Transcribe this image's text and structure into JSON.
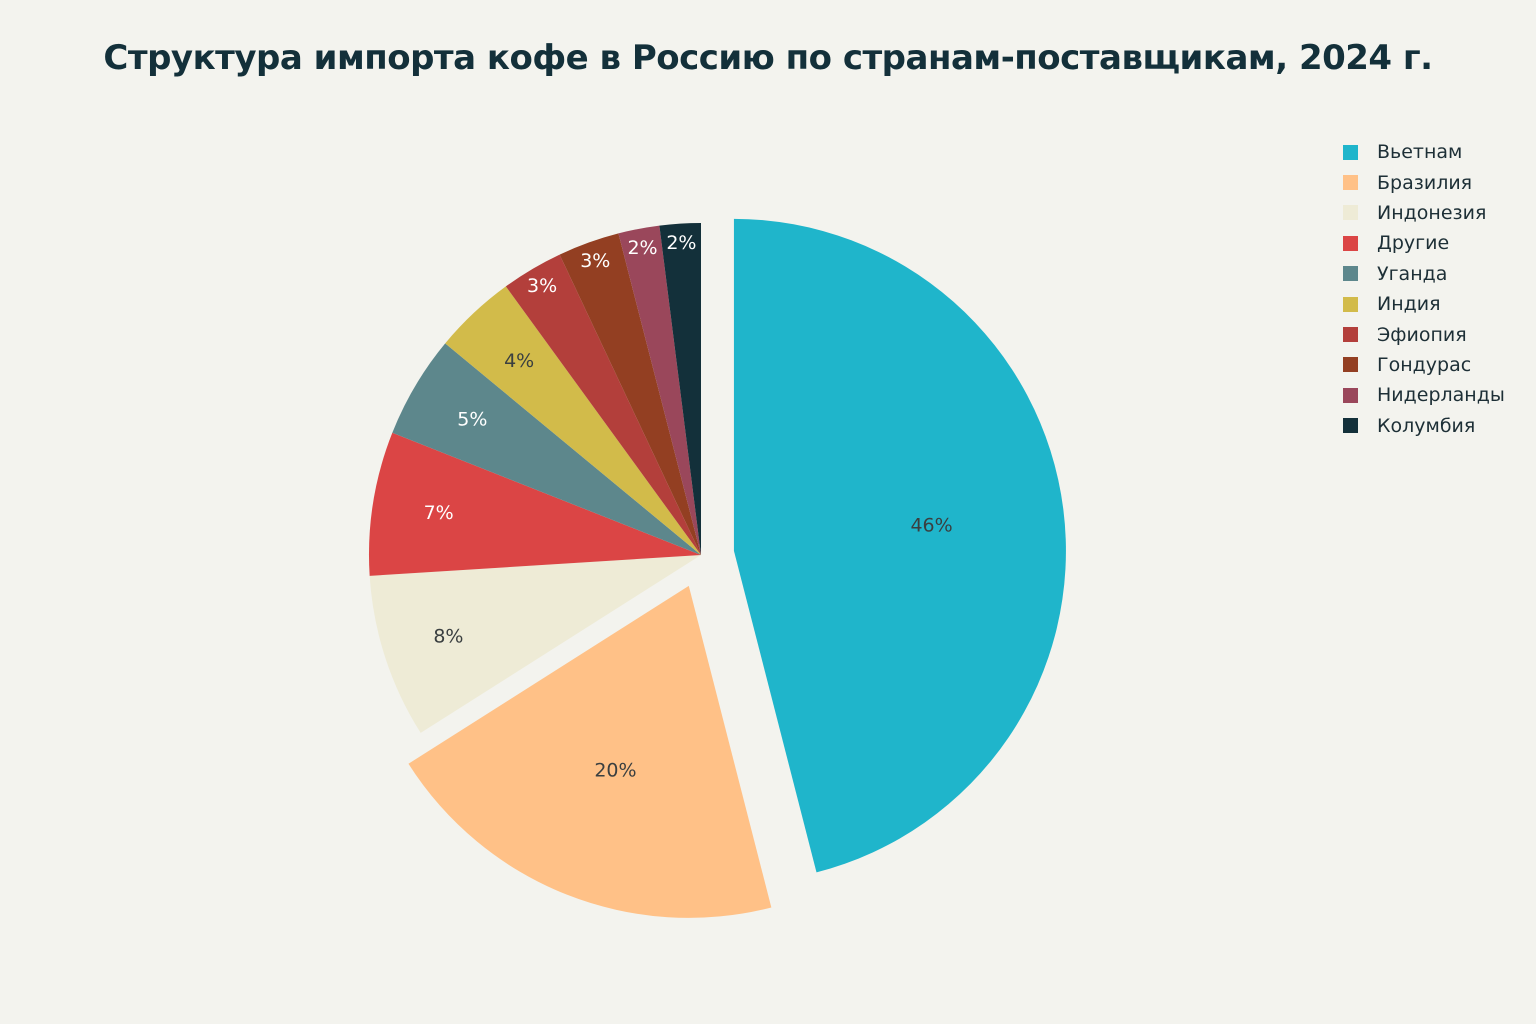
{
  "chart_data": {
    "type": "pie",
    "title": "Структура импорта кофе в Россию по странам-поставщикам, 2024 г.",
    "legend_position": "top-right",
    "slices": [
      {
        "name": "Вьетнам",
        "value": 46,
        "label": "46%",
        "color": "#1fb5cb",
        "label_color": "#3a3f40",
        "pull": 0.1
      },
      {
        "name": "Бразилия",
        "value": 20,
        "label": "20%",
        "color": "#ffc187",
        "label_color": "#3a3f40",
        "pull": 0.1
      },
      {
        "name": "Индонезия",
        "value": 8,
        "label": "8%",
        "color": "#eeebd6",
        "label_color": "#3a3f40",
        "pull": 0
      },
      {
        "name": "Другие",
        "value": 7,
        "label": "7%",
        "color": "#db4545",
        "label_color": "#ffffff",
        "pull": 0
      },
      {
        "name": "Уганда",
        "value": 5,
        "label": "5%",
        "color": "#5d878c",
        "label_color": "#ffffff",
        "pull": 0
      },
      {
        "name": "Индия",
        "value": 4,
        "label": "4%",
        "color": "#d2bb4a",
        "label_color": "#3a3f40",
        "pull": 0
      },
      {
        "name": "Эфиопия",
        "value": 3,
        "label": "3%",
        "color": "#b33f3b",
        "label_color": "#ffffff",
        "pull": 0
      },
      {
        "name": "Гондурас",
        "value": 3,
        "label": "3%",
        "color": "#933f22",
        "label_color": "#ffffff",
        "pull": 0
      },
      {
        "name": "Нидерланды",
        "value": 2,
        "label": "2%",
        "color": "#9a475b",
        "label_color": "#ffffff",
        "pull": 0
      },
      {
        "name": "Колумбия",
        "value": 2,
        "label": "2%",
        "color": "#13303a",
        "label_color": "#ffffff",
        "pull": 0
      }
    ]
  }
}
